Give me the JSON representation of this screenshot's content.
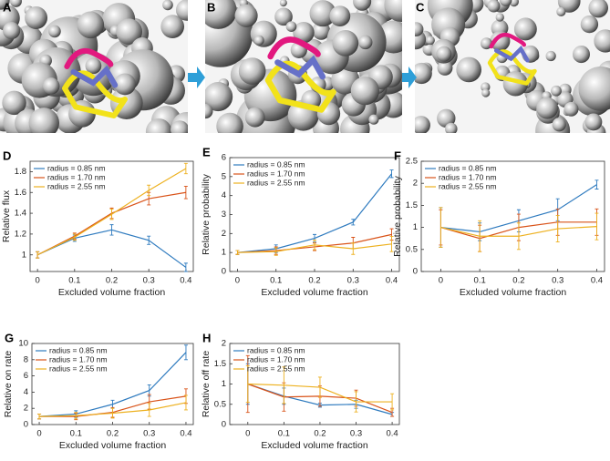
{
  "images": {
    "labels": [
      "A",
      "B",
      "C"
    ]
  },
  "chart_data": [
    {
      "type": "line",
      "panel": "D",
      "xlabel": "Excluded volume fraction",
      "ylabel": "Relative flux",
      "x": [
        0,
        0.1,
        0.2,
        0.3,
        0.4
      ],
      "xlim": [
        -0.02,
        0.42
      ],
      "xticks": [
        0,
        0.1,
        0.2,
        0.3,
        0.4
      ],
      "ylim": [
        0.84,
        1.9
      ],
      "yticks": [
        1,
        1.2,
        1.4,
        1.6,
        1.8
      ],
      "legend": "top-left",
      "series": [
        {
          "name": "radius = 0.85 nm",
          "color": "#2f7bbf",
          "values": [
            1,
            1.16,
            1.24,
            1.14,
            0.88
          ],
          "errors": [
            0.03,
            0.03,
            0.05,
            0.04,
            0.04
          ]
        },
        {
          "name": "radius = 1.70 nm",
          "color": "#d95319",
          "values": [
            1,
            1.18,
            1.4,
            1.54,
            1.6
          ],
          "errors": [
            0.03,
            0.03,
            0.05,
            0.06,
            0.06
          ]
        },
        {
          "name": "radius = 2.55 nm",
          "color": "#edb120",
          "values": [
            1,
            1.17,
            1.39,
            1.62,
            1.83
          ],
          "errors": [
            0.03,
            0.03,
            0.05,
            0.05,
            0.05
          ]
        }
      ]
    },
    {
      "type": "line",
      "panel": "E",
      "xlabel": "Excluded volume fraction",
      "ylabel": "Relative probability",
      "x": [
        0,
        0.1,
        0.2,
        0.3,
        0.4
      ],
      "xlim": [
        -0.02,
        0.42
      ],
      "xticks": [
        0,
        0.1,
        0.2,
        0.3,
        0.4
      ],
      "ylim": [
        0,
        6
      ],
      "yticks": [
        0,
        1,
        2,
        3,
        4,
        5,
        6
      ],
      "legend": "top-left",
      "series": [
        {
          "name": "radius = 0.85 nm",
          "color": "#2f7bbf",
          "values": [
            1,
            1.2,
            1.75,
            2.6,
            5.15
          ],
          "errors": [
            0.1,
            0.2,
            0.2,
            0.15,
            0.2
          ]
        },
        {
          "name": "radius = 1.70 nm",
          "color": "#d95319",
          "values": [
            1,
            1.1,
            1.3,
            1.5,
            1.95
          ],
          "errors": [
            0.1,
            0.2,
            0.2,
            0.3,
            0.3
          ]
        },
        {
          "name": "radius = 2.55 nm",
          "color": "#edb120",
          "values": [
            1,
            1.05,
            1.4,
            1.2,
            1.45
          ],
          "errors": [
            0.1,
            0.2,
            0.25,
            0.3,
            0.4
          ]
        }
      ]
    },
    {
      "type": "line",
      "panel": "F",
      "xlabel": "Excluded volume fraction",
      "ylabel": "Relative probability",
      "x": [
        0,
        0.1,
        0.2,
        0.3,
        0.4
      ],
      "xlim": [
        -0.05,
        0.42
      ],
      "xticks": [
        0,
        0.1,
        0.2,
        0.3,
        0.4
      ],
      "ylim": [
        0,
        2.5
      ],
      "yticks": [
        0,
        0.5,
        1,
        1.5,
        2,
        2.5
      ],
      "legend": "top-left",
      "series": [
        {
          "name": "radius = 0.85 nm",
          "color": "#2f7bbf",
          "values": [
            1,
            0.9,
            1.15,
            1.4,
            1.97
          ],
          "errors": [
            0.45,
            0.2,
            0.25,
            0.25,
            0.1
          ]
        },
        {
          "name": "radius = 1.70 nm",
          "color": "#d95319",
          "values": [
            1,
            0.75,
            1.0,
            1.12,
            1.12
          ],
          "errors": [
            0.4,
            0.3,
            0.3,
            0.3,
            0.3
          ]
        },
        {
          "name": "radius = 2.55 nm",
          "color": "#edb120",
          "values": [
            1,
            0.8,
            0.8,
            0.97,
            1.02
          ],
          "errors": [
            0.45,
            0.35,
            0.3,
            0.3,
            0.3
          ]
        }
      ]
    },
    {
      "type": "line",
      "panel": "G",
      "xlabel": "Excluded volume fraction",
      "ylabel": "Relative on rate",
      "x": [
        0,
        0.1,
        0.2,
        0.3,
        0.4
      ],
      "xlim": [
        -0.02,
        0.42
      ],
      "xticks": [
        0,
        0.1,
        0.2,
        0.3,
        0.4
      ],
      "ylim": [
        0,
        10
      ],
      "yticks": [
        0,
        2,
        4,
        6,
        8,
        10
      ],
      "legend": "top-left",
      "series": [
        {
          "name": "radius = 0.85 nm",
          "color": "#2f7bbf",
          "values": [
            1,
            1.3,
            2.5,
            4.2,
            8.9
          ],
          "errors": [
            0.3,
            0.4,
            0.5,
            0.7,
            0.9
          ]
        },
        {
          "name": "radius = 1.70 nm",
          "color": "#d95319",
          "values": [
            1,
            1,
            1.5,
            2.8,
            3.5
          ],
          "errors": [
            0.3,
            0.4,
            0.6,
            0.9,
            0.9
          ]
        },
        {
          "name": "radius = 2.55 nm",
          "color": "#edb120",
          "values": [
            1,
            1.1,
            1.4,
            1.8,
            2.7
          ],
          "errors": [
            0.3,
            0.4,
            0.6,
            0.8,
            0.9
          ]
        }
      ]
    },
    {
      "type": "line",
      "panel": "H",
      "xlabel": "Excluded volume fraction",
      "ylabel": "Relative off rate",
      "x": [
        0,
        0.1,
        0.2,
        0.3,
        0.4
      ],
      "xlim": [
        -0.05,
        0.42
      ],
      "xticks": [
        0,
        0.1,
        0.2,
        0.3,
        0.4
      ],
      "ylim": [
        0,
        2
      ],
      "yticks": [
        0,
        0.5,
        1,
        1.5,
        2
      ],
      "legend": "top-left",
      "series": [
        {
          "name": "radius = 0.85 nm",
          "color": "#2f7bbf",
          "values": [
            1,
            0.7,
            0.48,
            0.5,
            0.25
          ],
          "errors": [
            0.5,
            0.2,
            0.05,
            0.1,
            0.05
          ]
        },
        {
          "name": "radius = 1.70 nm",
          "color": "#d95319",
          "values": [
            1,
            0.68,
            0.7,
            0.65,
            0.3
          ],
          "errors": [
            0.7,
            0.35,
            0.25,
            0.2,
            0.1
          ]
        },
        {
          "name": "radius = 2.55 nm",
          "color": "#edb120",
          "values": [
            1,
            0.97,
            0.92,
            0.56,
            0.56
          ],
          "errors": [
            0.45,
            0.45,
            0.25,
            0.25,
            0.2
          ]
        }
      ]
    }
  ]
}
